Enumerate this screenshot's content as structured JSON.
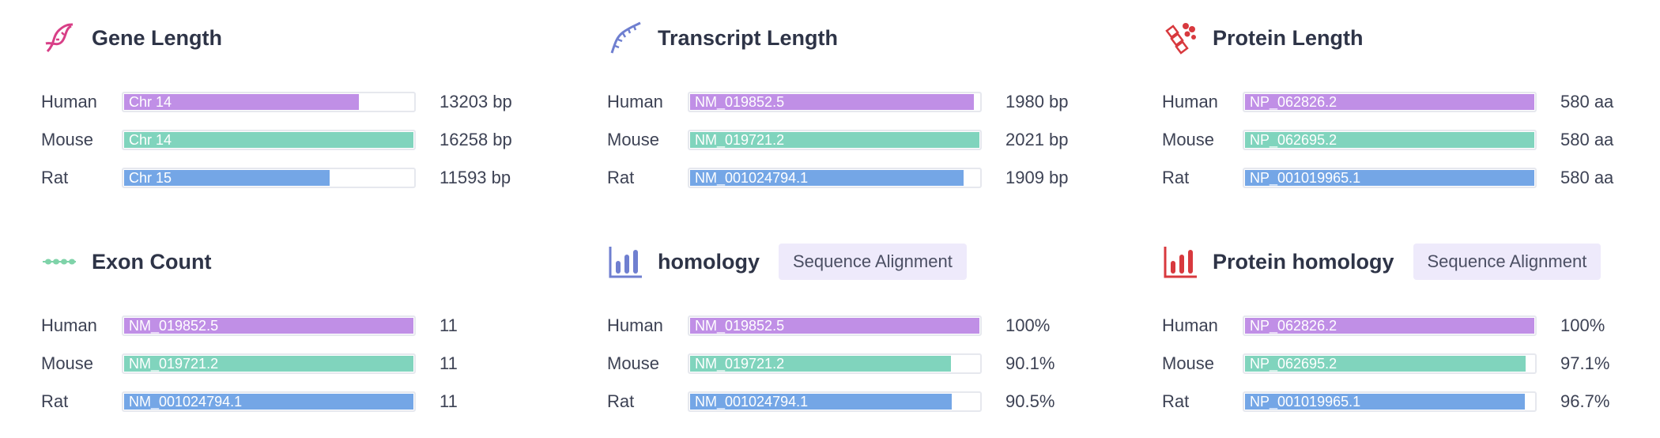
{
  "colors": {
    "human": "#c08fe6",
    "mouse": "#80d4bd",
    "rat": "#74a6e6",
    "button_bg": "#eeeafb"
  },
  "panels": [
    {
      "title": "Gene Length",
      "icon": "dna-icon",
      "button": null,
      "rows": [
        {
          "species": "Human",
          "label": "Chr 14",
          "value": "13203 bp",
          "fraction": 0.812
        },
        {
          "species": "Mouse",
          "label": "Chr 14",
          "value": "16258 bp",
          "fraction": 1.0
        },
        {
          "species": "Rat",
          "label": "Chr 15",
          "value": "11593 bp",
          "fraction": 0.713
        }
      ]
    },
    {
      "title": "Transcript Length",
      "icon": "rna-strand-icon",
      "button": null,
      "rows": [
        {
          "species": "Human",
          "label": "NM_019852.5",
          "value": "1980 bp",
          "fraction": 0.98
        },
        {
          "species": "Mouse",
          "label": "NM_019721.2",
          "value": "2021 bp",
          "fraction": 1.0
        },
        {
          "species": "Rat",
          "label": "NM_001024794.1",
          "value": "1909 bp",
          "fraction": 0.945
        }
      ]
    },
    {
      "title": "Protein Length",
      "icon": "protein-structure-icon",
      "button": null,
      "rows": [
        {
          "species": "Human",
          "label": "NP_062826.2",
          "value": "580 aa",
          "fraction": 1.0
        },
        {
          "species": "Mouse",
          "label": "NP_062695.2",
          "value": "580 aa",
          "fraction": 1.0
        },
        {
          "species": "Rat",
          "label": "NP_001019965.1",
          "value": "580 aa",
          "fraction": 1.0
        }
      ]
    },
    {
      "title": "Exon Count",
      "icon": "exon-chain-icon",
      "button": null,
      "rows": [
        {
          "species": "Human",
          "label": "NM_019852.5",
          "value": "11",
          "fraction": 1.0
        },
        {
          "species": "Mouse",
          "label": "NM_019721.2",
          "value": "11",
          "fraction": 1.0
        },
        {
          "species": "Rat",
          "label": "NM_001024794.1",
          "value": "11",
          "fraction": 1.0
        }
      ]
    },
    {
      "title": "homology",
      "icon": "bar-chart-icon",
      "button": "Sequence Alignment",
      "rows": [
        {
          "species": "Human",
          "label": "NM_019852.5",
          "value": "100%",
          "fraction": 1.0
        },
        {
          "species": "Mouse",
          "label": "NM_019721.2",
          "value": "90.1%",
          "fraction": 0.901
        },
        {
          "species": "Rat",
          "label": "NM_001024794.1",
          "value": "90.5%",
          "fraction": 0.905
        }
      ]
    },
    {
      "title": "Protein homology",
      "icon": "bar-chart-icon",
      "button": "Sequence Alignment",
      "rows": [
        {
          "species": "Human",
          "label": "NP_062826.2",
          "value": "100%",
          "fraction": 1.0
        },
        {
          "species": "Mouse",
          "label": "NP_062695.2",
          "value": "97.1%",
          "fraction": 0.971
        },
        {
          "species": "Rat",
          "label": "NP_001019965.1",
          "value": "96.7%",
          "fraction": 0.967
        }
      ]
    }
  ]
}
